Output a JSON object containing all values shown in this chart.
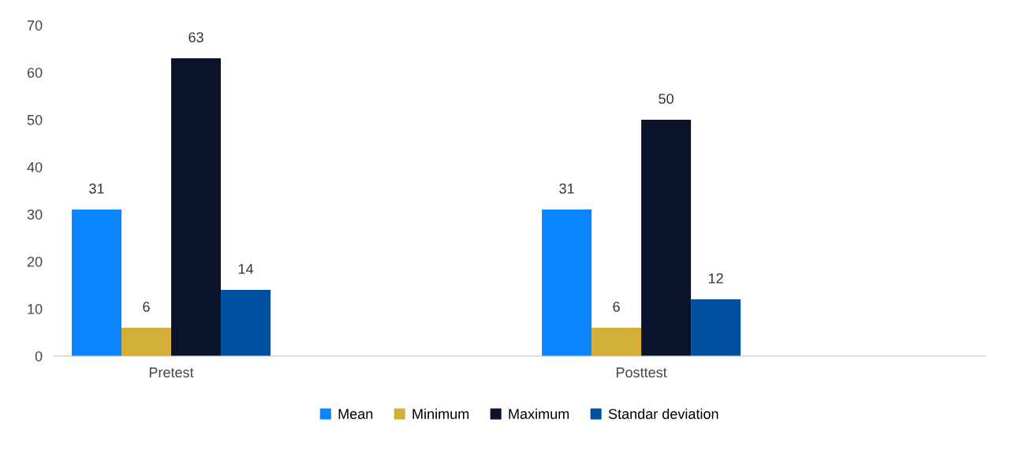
{
  "chart_data": {
    "type": "bar",
    "categories": [
      "Pretest",
      "Posttest"
    ],
    "series": [
      {
        "name": "Mean",
        "color": "#0a84ff",
        "values": [
          31,
          31
        ]
      },
      {
        "name": "Minimum",
        "color": "#d4af37",
        "values": [
          6,
          6
        ]
      },
      {
        "name": "Maximum",
        "color": "#0b132b",
        "values": [
          63,
          50
        ]
      },
      {
        "name": "Standar deviation",
        "color": "#0050a0",
        "values": [
          14,
          12
        ]
      }
    ],
    "ylim": [
      0,
      70
    ],
    "yticks": [
      0,
      10,
      20,
      30,
      40,
      50,
      60,
      70
    ],
    "data_labels": true,
    "legend": "bottom",
    "grid": false
  }
}
